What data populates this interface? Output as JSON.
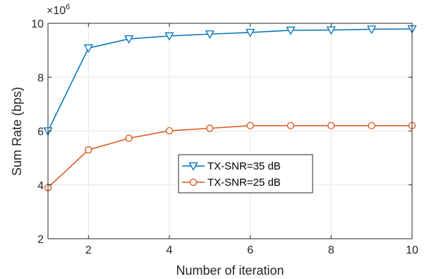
{
  "chart_data": {
    "type": "line",
    "xlabel": "Number of iteration",
    "ylabel": "Sum Rate (bps)",
    "y_exponent": {
      "base": "×10",
      "power": "6"
    },
    "xlim": [
      1,
      10
    ],
    "ylim": [
      2,
      10
    ],
    "xticks": [
      2,
      4,
      6,
      8,
      10
    ],
    "yticks": [
      2,
      4,
      6,
      8,
      10
    ],
    "grid": true,
    "legend_position": "center",
    "x": [
      1,
      2,
      3,
      4,
      5,
      6,
      7,
      8,
      9,
      10
    ],
    "series": [
      {
        "name": "TX-SNR=35 dB",
        "color": "#0072BD",
        "marker": "triangle-down",
        "values": [
          6.0,
          9.08,
          9.42,
          9.53,
          9.6,
          9.66,
          9.74,
          9.75,
          9.78,
          9.79
        ]
      },
      {
        "name": "TX-SNR=25 dB",
        "color": "#D95319",
        "marker": "circle",
        "values": [
          3.9,
          5.3,
          5.73,
          6.01,
          6.1,
          6.2,
          6.2,
          6.2,
          6.2,
          6.2
        ]
      }
    ]
  }
}
